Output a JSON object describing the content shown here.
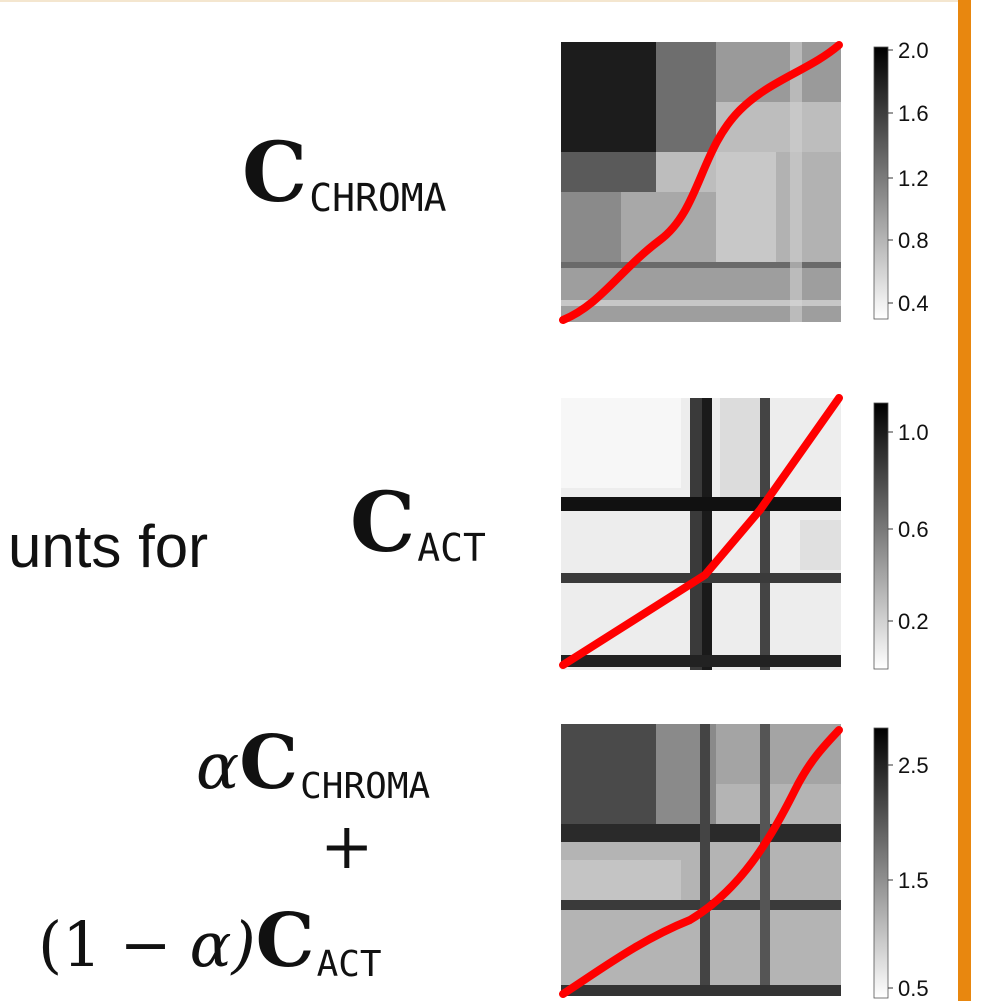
{
  "labels": {
    "chroma": {
      "symbol": "C",
      "sub": "CHROMA"
    },
    "act": {
      "symbol": "C",
      "sub": "ACT"
    },
    "cut_text": "unts for",
    "combo": {
      "alpha": "α",
      "symbol": "C",
      "sub_chroma": "CHROMA",
      "plus": "+",
      "open": "(1",
      "minus": "−",
      "alpha2": "α)",
      "sub_act": "ACT"
    }
  },
  "panels": [
    {
      "id": "chroma",
      "colorbar_ticks": [
        "2.0",
        "1.6",
        "1.2",
        "0.8",
        "0.4"
      ]
    },
    {
      "id": "act",
      "colorbar_ticks": [
        "1.0",
        "0.6",
        "0.2"
      ]
    },
    {
      "id": "combined",
      "colorbar_ticks": [
        "2.5",
        "1.5",
        "0.5"
      ]
    }
  ],
  "colors": {
    "path": "#ff0000",
    "accent_bar": "#e8870f"
  }
}
